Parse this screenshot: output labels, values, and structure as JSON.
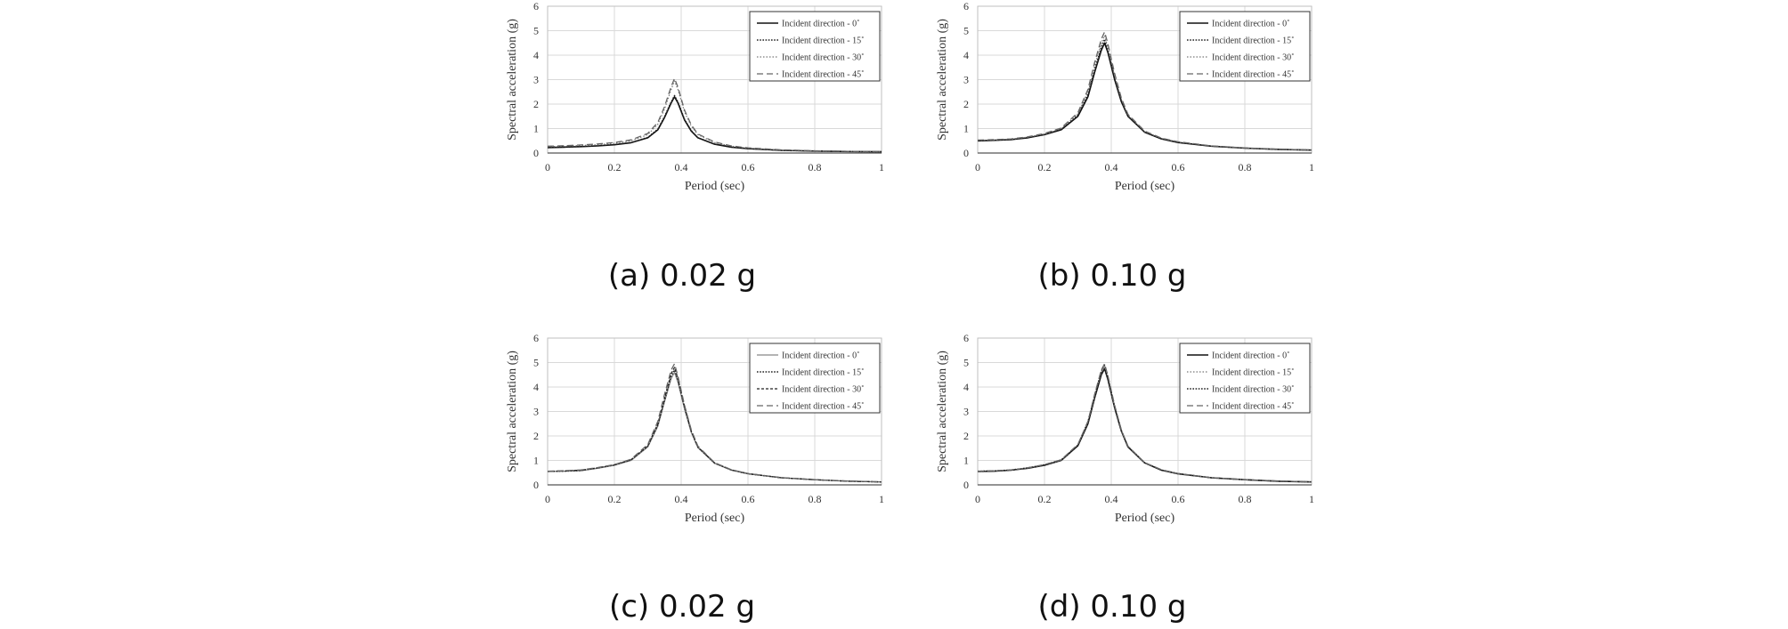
{
  "chart_data": [
    {
      "type": "line",
      "panel": "a",
      "caption": "(a) 0.02 g",
      "xlabel": "Period (sec)",
      "ylabel": "Spectral acceleration (g)",
      "xlim": [
        0,
        1
      ],
      "ylim": [
        0,
        6
      ],
      "xticks": [
        "0",
        "0.2",
        "0.4",
        "0.6",
        "0.8",
        "1"
      ],
      "yticks": [
        "0",
        "1",
        "2",
        "3",
        "4",
        "5",
        "6"
      ],
      "grid": true,
      "legend_position": "top-right",
      "x": [
        0,
        0.05,
        0.1,
        0.15,
        0.2,
        0.25,
        0.3,
        0.33,
        0.35,
        0.37,
        0.38,
        0.39,
        0.41,
        0.43,
        0.45,
        0.5,
        0.55,
        0.6,
        0.7,
        0.8,
        0.9,
        1.0
      ],
      "series": [
        {
          "name": "Incident direction - 0˚",
          "style": "solid",
          "values": [
            0.22,
            0.24,
            0.26,
            0.29,
            0.34,
            0.42,
            0.62,
            0.95,
            1.45,
            2.05,
            2.3,
            2.05,
            1.35,
            0.9,
            0.62,
            0.36,
            0.24,
            0.18,
            0.11,
            0.08,
            0.06,
            0.05
          ]
        },
        {
          "name": "Incident direction - 15˚",
          "style": "dotted",
          "values": [
            0.23,
            0.25,
            0.27,
            0.3,
            0.35,
            0.43,
            0.64,
            0.98,
            1.5,
            2.1,
            2.35,
            2.1,
            1.38,
            0.92,
            0.63,
            0.37,
            0.25,
            0.18,
            0.11,
            0.08,
            0.06,
            0.05
          ]
        },
        {
          "name": "Incident direction - 30˚",
          "style": "dotted-light",
          "values": [
            0.26,
            0.28,
            0.31,
            0.34,
            0.4,
            0.5,
            0.75,
            1.18,
            1.8,
            2.6,
            2.95,
            2.6,
            1.68,
            1.1,
            0.75,
            0.43,
            0.28,
            0.2,
            0.12,
            0.09,
            0.07,
            0.06
          ]
        },
        {
          "name": "Incident direction - 45˚",
          "style": "dashed",
          "values": [
            0.28,
            0.3,
            0.33,
            0.37,
            0.43,
            0.54,
            0.8,
            1.25,
            1.9,
            2.72,
            3.05,
            2.7,
            1.75,
            1.15,
            0.78,
            0.45,
            0.29,
            0.21,
            0.13,
            0.09,
            0.07,
            0.06
          ]
        }
      ]
    },
    {
      "type": "line",
      "panel": "b",
      "caption": "(b) 0.10 g",
      "xlabel": "Period (sec)",
      "ylabel": "Spectral acceleration (g)",
      "xlim": [
        0,
        1
      ],
      "ylim": [
        0,
        6
      ],
      "xticks": [
        "0",
        "0.2",
        "0.4",
        "0.6",
        "0.8",
        "1"
      ],
      "yticks": [
        "0",
        "1",
        "2",
        "3",
        "4",
        "5",
        "6"
      ],
      "grid": true,
      "legend_position": "top-right",
      "x": [
        0,
        0.05,
        0.1,
        0.15,
        0.2,
        0.25,
        0.3,
        0.33,
        0.35,
        0.37,
        0.38,
        0.39,
        0.41,
        0.43,
        0.45,
        0.5,
        0.55,
        0.6,
        0.7,
        0.8,
        0.9,
        1.0
      ],
      "series": [
        {
          "name": "Incident direction - 0˚",
          "style": "solid",
          "values": [
            0.5,
            0.52,
            0.55,
            0.62,
            0.75,
            0.95,
            1.5,
            2.3,
            3.3,
            4.2,
            4.5,
            4.1,
            3.0,
            2.1,
            1.5,
            0.85,
            0.58,
            0.43,
            0.28,
            0.2,
            0.15,
            0.12
          ]
        },
        {
          "name": "Incident direction - 15˚",
          "style": "dotted",
          "values": [
            0.5,
            0.52,
            0.56,
            0.63,
            0.76,
            0.97,
            1.55,
            2.4,
            3.4,
            4.35,
            4.65,
            4.2,
            3.1,
            2.15,
            1.52,
            0.86,
            0.59,
            0.44,
            0.28,
            0.2,
            0.15,
            0.12
          ]
        },
        {
          "name": "Incident direction - 30˚",
          "style": "dotted-light",
          "values": [
            0.52,
            0.54,
            0.57,
            0.65,
            0.78,
            1.0,
            1.6,
            2.5,
            3.55,
            4.5,
            4.8,
            4.3,
            3.15,
            2.2,
            1.55,
            0.88,
            0.6,
            0.45,
            0.29,
            0.21,
            0.15,
            0.12
          ]
        },
        {
          "name": "Incident direction - 45˚",
          "style": "dashed",
          "values": [
            0.53,
            0.55,
            0.58,
            0.66,
            0.8,
            1.02,
            1.65,
            2.6,
            3.7,
            4.65,
            4.95,
            4.45,
            3.25,
            2.25,
            1.58,
            0.9,
            0.61,
            0.46,
            0.29,
            0.21,
            0.16,
            0.12
          ]
        }
      ]
    },
    {
      "type": "line",
      "panel": "c",
      "caption": "(c) 0.02 g",
      "xlabel": "Period (sec)",
      "ylabel": "Spectral acceleration (g)",
      "xlim": [
        0,
        1
      ],
      "ylim": [
        0,
        6
      ],
      "xticks": [
        "0",
        "0.2",
        "0.4",
        "0.6",
        "0.8",
        "1"
      ],
      "yticks": [
        "0",
        "1",
        "2",
        "3",
        "4",
        "5",
        "6"
      ],
      "grid": true,
      "legend_position": "top-right",
      "x": [
        0,
        0.05,
        0.1,
        0.15,
        0.2,
        0.25,
        0.3,
        0.33,
        0.35,
        0.37,
        0.38,
        0.39,
        0.41,
        0.43,
        0.45,
        0.5,
        0.55,
        0.6,
        0.7,
        0.8,
        0.9,
        1.0
      ],
      "series": [
        {
          "name": "Incident direction - 0˚",
          "style": "solid-light",
          "values": [
            0.55,
            0.56,
            0.58,
            0.68,
            0.8,
            1.0,
            1.55,
            2.4,
            3.4,
            4.35,
            4.6,
            4.2,
            3.1,
            2.15,
            1.52,
            0.88,
            0.6,
            0.45,
            0.29,
            0.21,
            0.15,
            0.12
          ]
        },
        {
          "name": "Incident direction - 15˚",
          "style": "dotted",
          "values": [
            0.55,
            0.56,
            0.59,
            0.69,
            0.81,
            1.02,
            1.58,
            2.45,
            3.45,
            4.45,
            4.7,
            4.3,
            3.15,
            2.18,
            1.54,
            0.89,
            0.61,
            0.45,
            0.29,
            0.21,
            0.15,
            0.12
          ]
        },
        {
          "name": "Incident direction - 30˚",
          "style": "dashed-short",
          "values": [
            0.55,
            0.57,
            0.6,
            0.7,
            0.82,
            1.03,
            1.6,
            2.5,
            3.55,
            4.55,
            4.8,
            4.35,
            3.2,
            2.2,
            1.55,
            0.9,
            0.61,
            0.46,
            0.29,
            0.21,
            0.15,
            0.12
          ]
        },
        {
          "name": "Incident direction - 45˚",
          "style": "dashed",
          "values": [
            0.56,
            0.58,
            0.61,
            0.71,
            0.83,
            1.05,
            1.65,
            2.6,
            3.7,
            4.7,
            4.95,
            4.45,
            3.25,
            2.25,
            1.58,
            0.91,
            0.62,
            0.46,
            0.3,
            0.21,
            0.16,
            0.12
          ]
        }
      ]
    },
    {
      "type": "line",
      "panel": "d",
      "caption": "(d) 0.10 g",
      "xlabel": "Period (sec)",
      "ylabel": "Spectral acceleration (g)",
      "xlim": [
        0,
        1
      ],
      "ylim": [
        0,
        6
      ],
      "xticks": [
        "0",
        "0.2",
        "0.4",
        "0.6",
        "0.8",
        "1"
      ],
      "yticks": [
        "0",
        "1",
        "2",
        "3",
        "4",
        "5",
        "6"
      ],
      "grid": true,
      "legend_position": "top-right",
      "x": [
        0,
        0.05,
        0.1,
        0.15,
        0.2,
        0.25,
        0.3,
        0.33,
        0.35,
        0.37,
        0.38,
        0.39,
        0.41,
        0.43,
        0.45,
        0.5,
        0.55,
        0.6,
        0.7,
        0.8,
        0.9,
        1.0
      ],
      "series": [
        {
          "name": "Incident direction - 0˚",
          "style": "solid",
          "values": [
            0.55,
            0.56,
            0.6,
            0.68,
            0.8,
            1.0,
            1.6,
            2.5,
            3.55,
            4.5,
            4.75,
            4.3,
            3.15,
            2.2,
            1.55,
            0.9,
            0.6,
            0.45,
            0.29,
            0.21,
            0.15,
            0.12
          ]
        },
        {
          "name": "Incident direction - 15˚",
          "style": "dotted-light",
          "values": [
            0.55,
            0.57,
            0.6,
            0.69,
            0.81,
            1.01,
            1.62,
            2.55,
            3.6,
            4.6,
            4.85,
            4.35,
            3.18,
            2.22,
            1.56,
            0.9,
            0.61,
            0.45,
            0.29,
            0.21,
            0.15,
            0.12
          ]
        },
        {
          "name": "Incident direction - 30˚",
          "style": "dotted",
          "values": [
            0.56,
            0.57,
            0.61,
            0.7,
            0.82,
            1.02,
            1.63,
            2.58,
            3.65,
            4.65,
            4.9,
            4.4,
            3.2,
            2.23,
            1.57,
            0.91,
            0.61,
            0.46,
            0.29,
            0.21,
            0.15,
            0.12
          ]
        },
        {
          "name": "Incident direction - 45˚",
          "style": "dashed",
          "values": [
            0.56,
            0.58,
            0.61,
            0.7,
            0.83,
            1.03,
            1.65,
            2.6,
            3.7,
            4.7,
            4.95,
            4.45,
            3.25,
            2.25,
            1.58,
            0.91,
            0.62,
            0.46,
            0.3,
            0.21,
            0.16,
            0.12
          ]
        }
      ]
    }
  ]
}
